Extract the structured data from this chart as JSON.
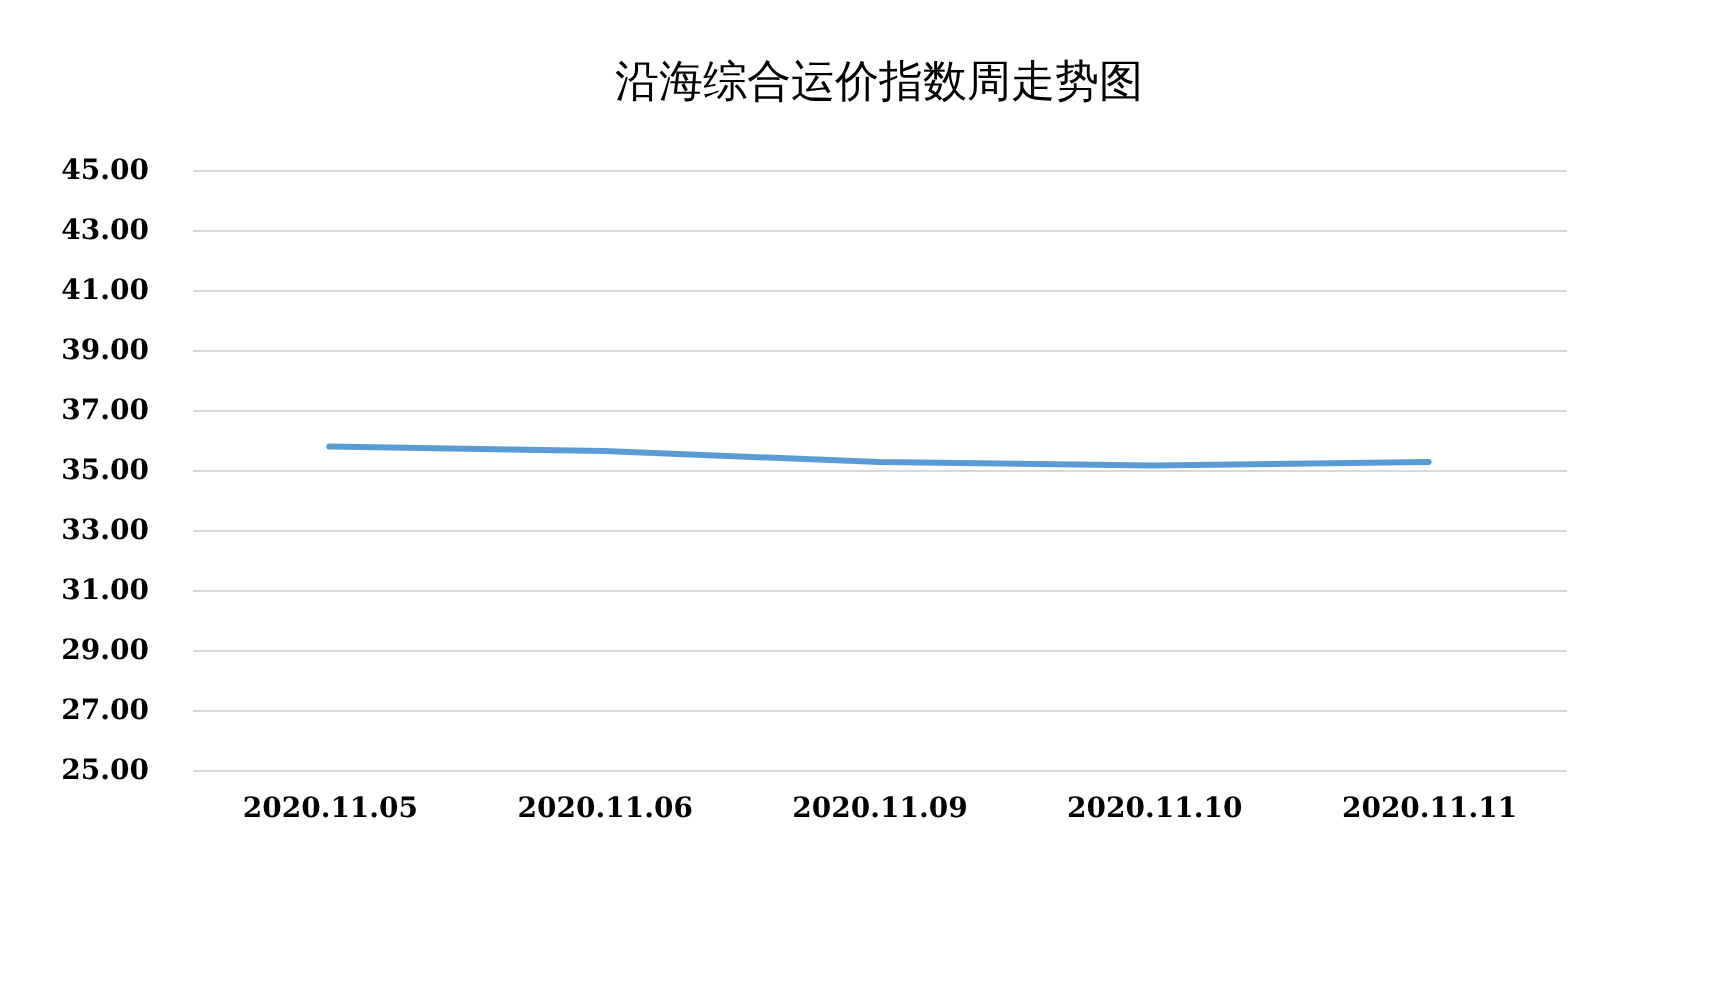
{
  "chart_data": {
    "type": "line",
    "title": "沿海综合运价指数周走势图",
    "categories": [
      "2020.11.05",
      "2020.11.06",
      "2020.11.09",
      "2020.11.10",
      "2020.11.11"
    ],
    "series": [
      {
        "color": "#5b9bd5",
        "values": [
          35.78,
          35.63,
          35.27,
          35.15,
          35.27
        ]
      }
    ],
    "ylim": [
      25,
      45
    ],
    "yticks": [
      {
        "value": 25,
        "label": "25.00"
      },
      {
        "value": 27,
        "label": "27.00"
      },
      {
        "value": 29,
        "label": "29.00"
      },
      {
        "value": 31,
        "label": "31.00"
      },
      {
        "value": 33,
        "label": "33.00"
      },
      {
        "value": 35,
        "label": "35.00"
      },
      {
        "value": 37,
        "label": "37.00"
      },
      {
        "value": 39,
        "label": "39.00"
      },
      {
        "value": 41,
        "label": "41.00"
      },
      {
        "value": 43,
        "label": "43.00"
      },
      {
        "value": 45,
        "label": "45.00"
      }
    ],
    "grid": "y",
    "marker": "none",
    "line_style": "solid"
  }
}
